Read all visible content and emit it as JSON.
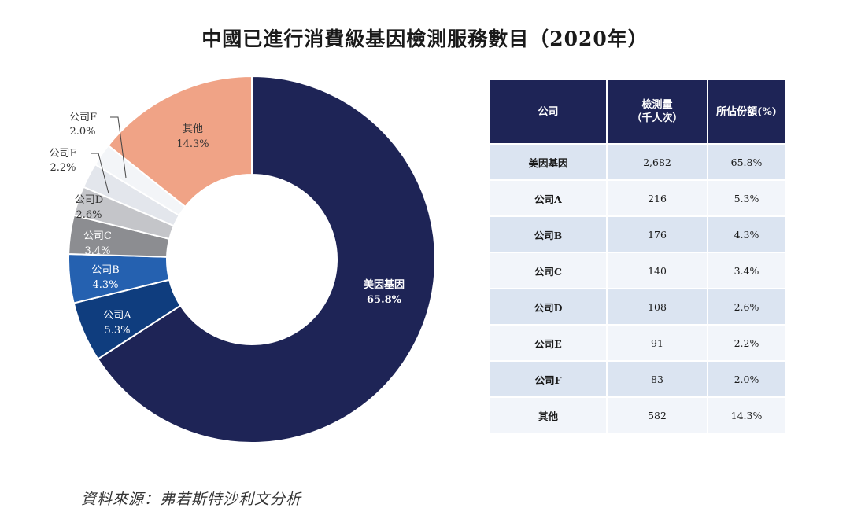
{
  "title": "中國已進行消費級基因檢測服務數目（2020年）",
  "source": "資料來源：弗若斯特沙利文分析",
  "chart_data": {
    "type": "pie",
    "donut": true,
    "slices": [
      {
        "label": "美因基因",
        "value": 65.8,
        "display": "65.8%",
        "color": "#1e2456"
      },
      {
        "label": "公司A",
        "value": 5.3,
        "display": "5.3%",
        "color": "#0f3d7e"
      },
      {
        "label": "公司B",
        "value": 4.3,
        "display": "4.3%",
        "color": "#2561b0"
      },
      {
        "label": "公司C",
        "value": 3.4,
        "display": "3.4%",
        "color": "#8c8d91"
      },
      {
        "label": "公司D",
        "value": 2.6,
        "display": "2.6%",
        "color": "#c4c5c9"
      },
      {
        "label": "公司E",
        "value": 2.2,
        "display": "2.2%",
        "color": "#e3e6ec"
      },
      {
        "label": "公司F",
        "value": 2.0,
        "display": "2.0%",
        "color": "#f3f5f8"
      },
      {
        "label": "其他",
        "value": 14.3,
        "display": "14.3%",
        "color": "#f0a386"
      }
    ]
  },
  "table": {
    "headers": [
      "公司",
      "檢測量\n（千人次）",
      "所佔份額(%)"
    ],
    "rows": [
      [
        "美因基因",
        "2,682",
        "65.8%"
      ],
      [
        "公司A",
        "216",
        "5.3%"
      ],
      [
        "公司B",
        "176",
        "4.3%"
      ],
      [
        "公司C",
        "140",
        "3.4%"
      ],
      [
        "公司D",
        "108",
        "2.6%"
      ],
      [
        "公司E",
        "91",
        "2.2%"
      ],
      [
        "公司F",
        "83",
        "2.0%"
      ],
      [
        "其他",
        "582",
        "14.3%"
      ]
    ]
  }
}
